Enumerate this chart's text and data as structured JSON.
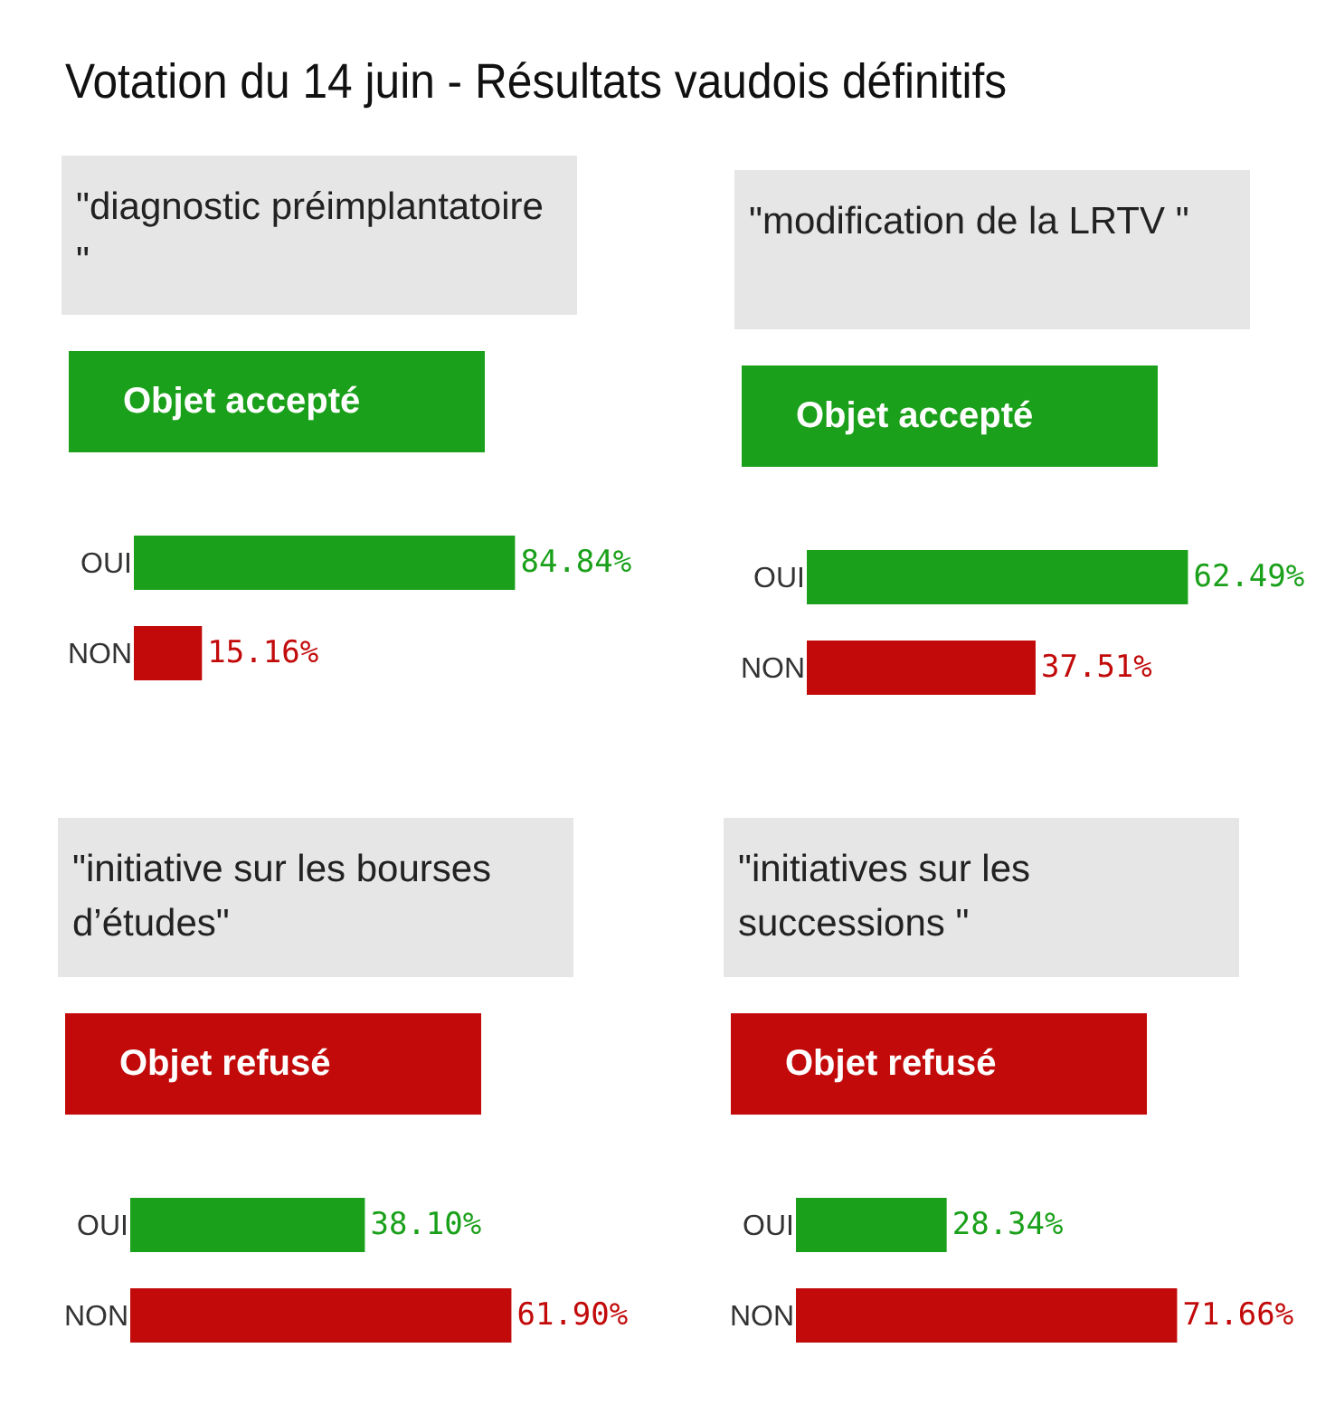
{
  "chart_data": [
    {
      "type": "other",
      "title": "Votation du 14 juin - Résultats vaudois définitifs"
    },
    {
      "type": "bar",
      "orientation": "horizontal",
      "title": "\"diagnostic préimplantatoire \"",
      "subtitle": "Objet accepté",
      "categories": [
        "OUI",
        "NON"
      ],
      "values": [
        84.84,
        15.16
      ],
      "colors": [
        "#1aa01a",
        "#c20a0a"
      ],
      "value_labels": [
        "84.84%",
        "15.16%"
      ]
    },
    {
      "type": "bar",
      "orientation": "horizontal",
      "title": "\"modification de la LRTV \"",
      "subtitle": "Objet accepté",
      "categories": [
        "OUI",
        "NON"
      ],
      "values": [
        62.49,
        37.51
      ],
      "colors": [
        "#1aa01a",
        "#c20a0a"
      ],
      "value_labels": [
        "62.49%",
        "37.51%"
      ]
    },
    {
      "type": "bar",
      "orientation": "horizontal",
      "title": "\"initiative sur les bourses d’études\"",
      "subtitle": "Objet refusé",
      "categories": [
        "OUI",
        "NON"
      ],
      "values": [
        38.1,
        61.9
      ],
      "colors": [
        "#1aa01a",
        "#c20a0a"
      ],
      "value_labels": [
        "38.10%",
        "61.90%"
      ]
    },
    {
      "type": "bar",
      "orientation": "horizontal",
      "title": "\"initiatives sur les successions \"",
      "subtitle": "Objet refusé",
      "categories": [
        "OUI",
        "NON"
      ],
      "values": [
        28.34,
        71.66
      ],
      "colors": [
        "#1aa01a",
        "#c20a0a"
      ],
      "value_labels": [
        "28.34%",
        "71.66%"
      ]
    }
  ]
}
